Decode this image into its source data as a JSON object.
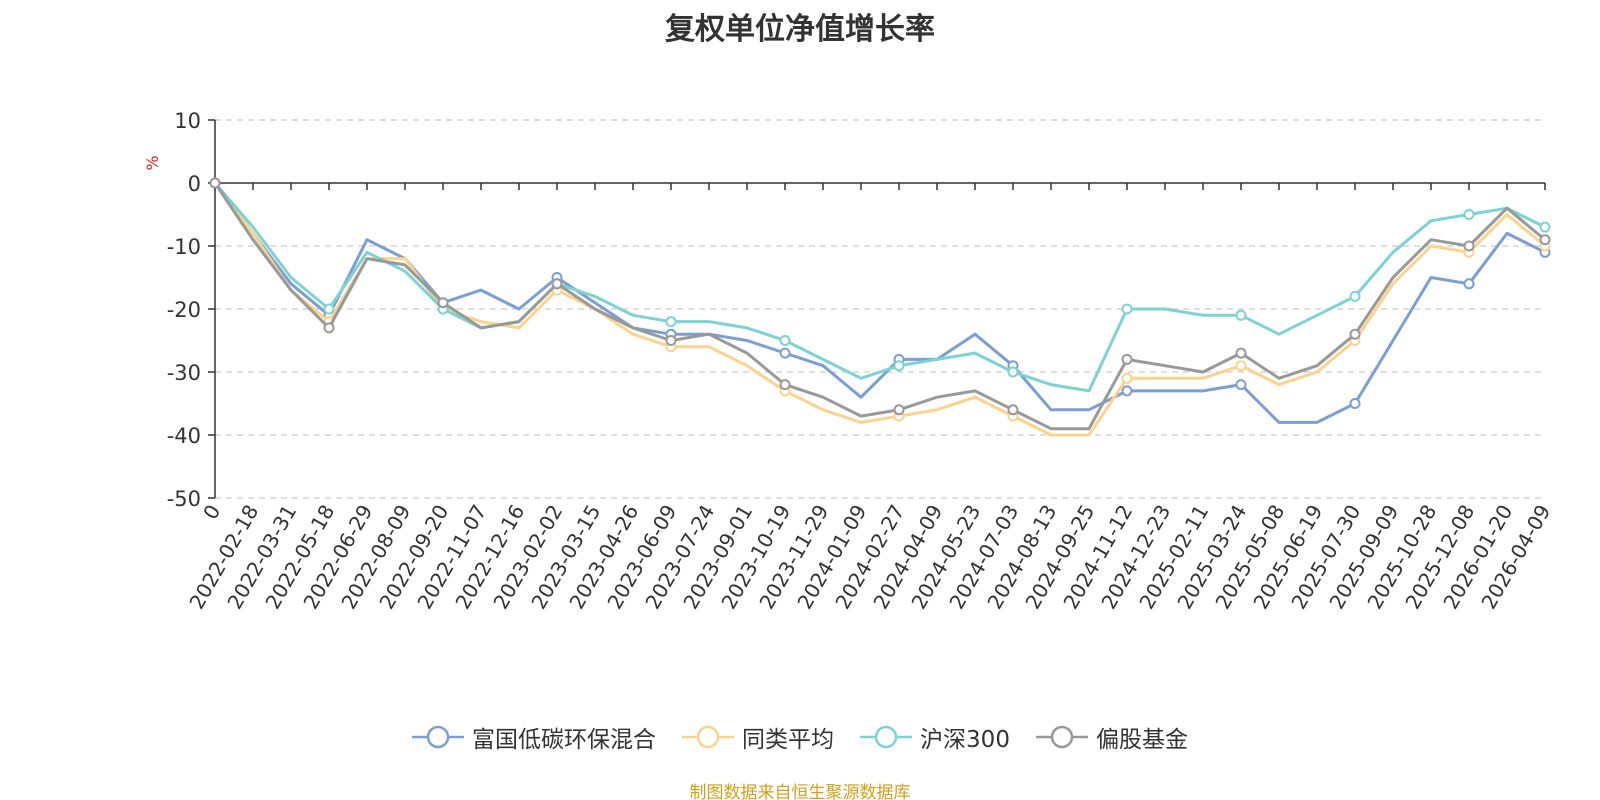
{
  "chart_data": {
    "type": "line",
    "title": "复权单位净值增长率",
    "ylabel": "%",
    "ylim": [
      -50,
      10
    ],
    "yticks": [
      10,
      0,
      -10,
      -20,
      -30,
      -40,
      -50
    ],
    "grid": true,
    "legend_position": "bottom",
    "source": "制图数据来自恒生聚源数据库",
    "x": [
      "0",
      "2022-02-18",
      "2022-03-31",
      "2022-05-18",
      "2022-06-29",
      "2022-08-09",
      "2022-09-20",
      "2022-11-07",
      "2022-12-16",
      "2023-02-02",
      "2023-03-15",
      "2023-04-26",
      "2023-06-09",
      "2023-07-24",
      "2023-09-01",
      "2023-10-19",
      "2023-11-29",
      "2024-01-09",
      "2024-02-27",
      "2024-04-09",
      "2024-05-23",
      "2024-07-03",
      "2024-08-13",
      "2024-09-25",
      "2024-11-12",
      "2024-12-23",
      "2025-02-11",
      "2025-03-24",
      "2025-05-08",
      "2025-06-19",
      "2025-07-30",
      "2025-09-09",
      "2025-10-28",
      "2025-12-08",
      "2026-01-20",
      "2026-04-09"
    ],
    "series": [
      {
        "name": "富国低碳环保混合",
        "color": "#7b9fd4",
        "values": [
          0,
          -8,
          -16,
          -21,
          -9,
          -12,
          -19,
          -17,
          -20,
          -15,
          -19,
          -23,
          -24,
          -24,
          -25,
          -27,
          -29,
          -34,
          -28,
          -28,
          -24,
          -29,
          -36,
          -36,
          -33,
          -33,
          -33,
          -32,
          -38,
          -38,
          -35,
          -25,
          -15,
          -16,
          -8,
          -11
        ]
      },
      {
        "name": "同类平均",
        "color": "#fbd38d",
        "values": [
          0,
          -8,
          -17,
          -22,
          -12,
          -12,
          -20,
          -22,
          -23,
          -17,
          -20,
          -24,
          -26,
          -26,
          -29,
          -33,
          -36,
          -38,
          -37,
          -36,
          -34,
          -37,
          -40,
          -40,
          -31,
          -31,
          -31,
          -29,
          -32,
          -30,
          -25,
          -16,
          -10,
          -11,
          -5,
          -10
        ]
      },
      {
        "name": "沪深300",
        "color": "#7dd3d3",
        "values": [
          0,
          -7,
          -15,
          -20,
          -11,
          -14,
          -20,
          -23,
          -22,
          -16,
          -18,
          -21,
          -22,
          -22,
          -23,
          -25,
          -28,
          -31,
          -29,
          -28,
          -27,
          -30,
          -32,
          -33,
          -20,
          -20,
          -21,
          -21,
          -24,
          -21,
          -18,
          -11,
          -6,
          -5,
          -4,
          -7
        ]
      },
      {
        "name": "偏股基金",
        "color": "#999999",
        "values": [
          0,
          -9,
          -17,
          -23,
          -12,
          -13,
          -19,
          -23,
          -22,
          -16,
          -20,
          -23,
          -25,
          -24,
          -27,
          -32,
          -34,
          -37,
          -36,
          -34,
          -33,
          -36,
          -39,
          -39,
          -28,
          -29,
          -30,
          -27,
          -31,
          -29,
          -24,
          -15,
          -9,
          -10,
          -4,
          -9
        ]
      }
    ]
  }
}
